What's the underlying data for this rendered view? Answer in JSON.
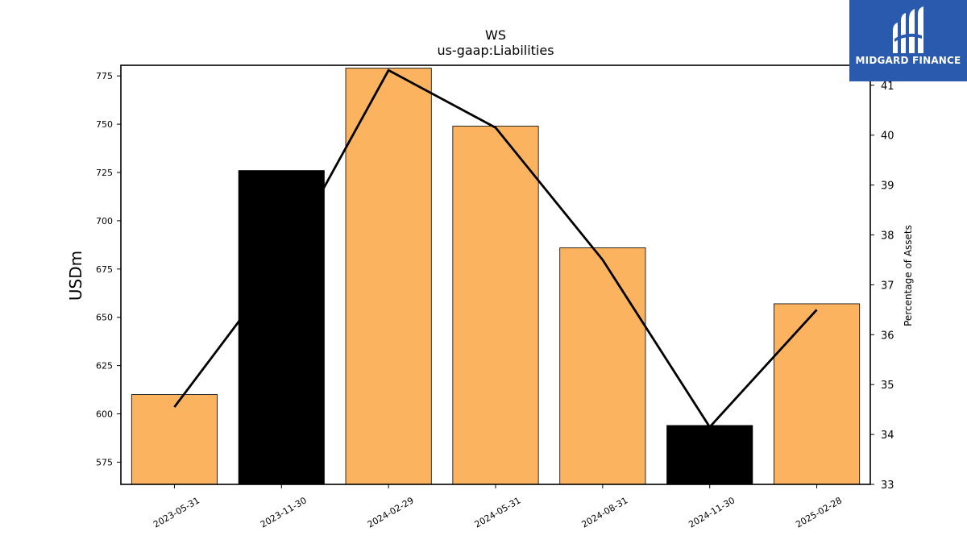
{
  "chart_data": {
    "type": "bar",
    "title": "WS",
    "subtitle": "us-gaap:Liabilities",
    "ylabel": "USDm",
    "y2label": "Percentage of Assets",
    "categories": [
      "2023-05-31",
      "2023-11-30",
      "2024-02-29",
      "2024-05-31",
      "2024-08-31",
      "2024-11-30",
      "2025-02-28"
    ],
    "series": [
      {
        "kind": "bar",
        "axis": "left",
        "values": [
          610,
          726,
          779,
          749,
          686,
          594,
          657
        ],
        "colors": [
          "#fbb360",
          "#000000",
          "#fbb360",
          "#fbb360",
          "#fbb360",
          "#000000",
          "#fbb360"
        ]
      },
      {
        "kind": "line",
        "axis": "right",
        "color": "#000000",
        "values": [
          34.55,
          37.4,
          41.3,
          40.15,
          37.5,
          34.15,
          36.5
        ]
      }
    ],
    "ylim": [
      563.5,
      780.5
    ],
    "y2lim": [
      33,
      41.4
    ],
    "yticks": [
      575,
      600,
      625,
      650,
      675,
      700,
      725,
      750,
      775
    ],
    "y2ticks": [
      33,
      34,
      35,
      36,
      37,
      38,
      39,
      40,
      41
    ],
    "grid": false
  },
  "logo": {
    "text": "MIDGARD FINANCE",
    "background": "#2a5aad"
  }
}
